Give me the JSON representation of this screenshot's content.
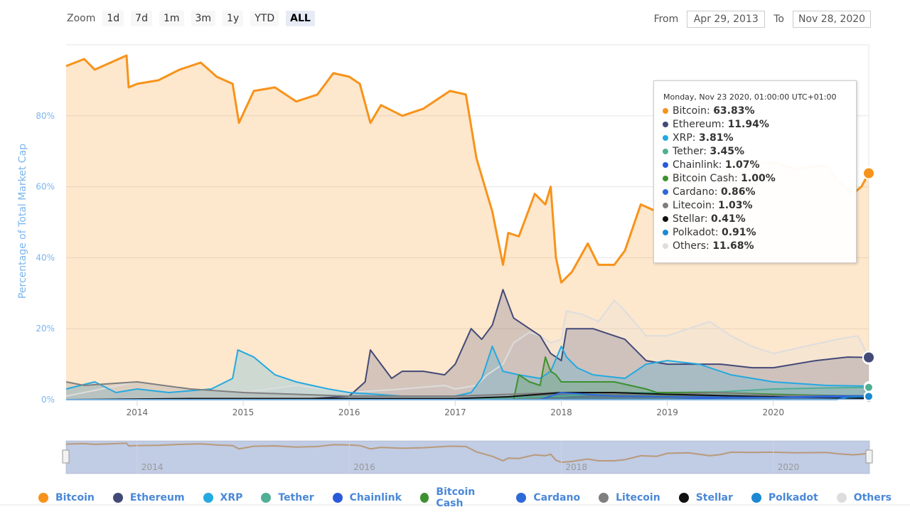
{
  "zoom": {
    "label": "Zoom",
    "buttons": [
      {
        "label": "1d",
        "active": false
      },
      {
        "label": "7d",
        "active": false
      },
      {
        "label": "1m",
        "active": false
      },
      {
        "label": "3m",
        "active": false
      },
      {
        "label": "1y",
        "active": false
      },
      {
        "label": "YTD",
        "active": false
      },
      {
        "label": "ALL",
        "active": true
      }
    ]
  },
  "range": {
    "from_label": "From",
    "from_value": "Apr 29, 2013",
    "to_label": "To",
    "to_value": "Nov 28, 2020"
  },
  "tooltip": {
    "header": "Monday, Nov 23 2020, 01:00:00 UTC+01:00",
    "rows": [
      {
        "name": "Bitcoin",
        "value": "63.83%",
        "color": "#f7931a"
      },
      {
        "name": "Ethereum",
        "value": "11.94%",
        "color": "#434a77"
      },
      {
        "name": "XRP",
        "value": "3.81%",
        "color": "#24a9e0"
      },
      {
        "name": "Tether",
        "value": "3.45%",
        "color": "#50af95"
      },
      {
        "name": "Chainlink",
        "value": "1.07%",
        "color": "#2a5ada"
      },
      {
        "name": "Bitcoin Cash",
        "value": "1.00%",
        "color": "#3d9130"
      },
      {
        "name": "Cardano",
        "value": "0.86%",
        "color": "#2d6ad8"
      },
      {
        "name": "Litecoin",
        "value": "1.03%",
        "color": "#7f7f7f"
      },
      {
        "name": "Stellar",
        "value": "0.41%",
        "color": "#111111"
      },
      {
        "name": "Polkadot",
        "value": "0.91%",
        "color": "#1c88d2"
      },
      {
        "name": "Others",
        "value": "11.68%",
        "color": "#dddddd"
      }
    ]
  },
  "legend": [
    {
      "name": "Bitcoin",
      "color": "#f7931a"
    },
    {
      "name": "Ethereum",
      "color": "#434a77"
    },
    {
      "name": "XRP",
      "color": "#24a9e0"
    },
    {
      "name": "Tether",
      "color": "#50af95"
    },
    {
      "name": "Chainlink",
      "color": "#2a5ada"
    },
    {
      "name": "Bitcoin Cash",
      "color": "#3d9130"
    },
    {
      "name": "Cardano",
      "color": "#2d6ad8"
    },
    {
      "name": "Litecoin",
      "color": "#7f7f7f"
    },
    {
      "name": "Stellar",
      "color": "#111111"
    },
    {
      "name": "Polkadot",
      "color": "#1c88d2"
    },
    {
      "name": "Others",
      "color": "#dddddd"
    }
  ],
  "chart_data": {
    "type": "area",
    "title": "",
    "xlabel": "",
    "ylabel": "Percentage of Total Market Cap",
    "ylim": [
      0,
      100
    ],
    "xlim": [
      2013.33,
      2020.9
    ],
    "y_ticks": [
      "0%",
      "20%",
      "40%",
      "60%",
      "80%"
    ],
    "y_tick_values": [
      0,
      20,
      40,
      60,
      80
    ],
    "x_ticks": [
      "2014",
      "2015",
      "2016",
      "2017",
      "2018",
      "2019",
      "2020"
    ],
    "x_tick_values": [
      2014,
      2015,
      2016,
      2017,
      2018,
      2019,
      2020
    ],
    "navigator_ticks": [
      "2014",
      "2016",
      "2018",
      "2020"
    ],
    "navigator_tick_values": [
      2014,
      2016,
      2018,
      2020
    ],
    "series": [
      {
        "name": "Bitcoin",
        "color": "#f7931a",
        "x": [
          2013.33,
          2013.5,
          2013.6,
          2013.75,
          2013.9,
          2013.92,
          2014.0,
          2014.2,
          2014.4,
          2014.6,
          2014.75,
          2014.9,
          2014.96,
          2015.1,
          2015.3,
          2015.5,
          2015.7,
          2015.85,
          2016.0,
          2016.1,
          2016.2,
          2016.3,
          2016.5,
          2016.7,
          2016.9,
          2016.95,
          2017.1,
          2017.2,
          2017.25,
          2017.35,
          2017.45,
          2017.5,
          2017.6,
          2017.75,
          2017.85,
          2017.9,
          2017.95,
          2018.0,
          2018.1,
          2018.25,
          2018.35,
          2018.5,
          2018.6,
          2018.75,
          2018.9,
          2019.0,
          2019.2,
          2019.4,
          2019.5,
          2019.6,
          2019.8,
          2020.0,
          2020.2,
          2020.5,
          2020.6,
          2020.75,
          2020.83,
          2020.9
        ],
        "values": [
          94,
          96,
          93,
          95,
          97,
          88,
          89,
          90,
          93,
          95,
          91,
          89,
          78,
          87,
          88,
          84,
          86,
          92,
          91,
          89,
          78,
          83,
          80,
          82,
          86,
          87,
          86,
          68,
          63,
          53,
          38,
          47,
          46,
          58,
          55,
          60,
          40,
          33,
          36,
          44,
          38,
          38,
          42,
          55,
          53,
          63,
          65,
          55,
          59,
          67,
          66,
          67,
          65,
          66,
          62,
          58,
          60,
          63.8
        ]
      },
      {
        "name": "Others",
        "color": "#dddddd",
        "x": [
          2013.33,
          2014.0,
          2014.5,
          2015.0,
          2015.5,
          2016.0,
          2016.5,
          2016.9,
          2017.0,
          2017.2,
          2017.3,
          2017.45,
          2017.55,
          2017.7,
          2017.8,
          2017.9,
          2018.0,
          2018.05,
          2018.2,
          2018.35,
          2018.5,
          2018.6,
          2018.8,
          2019.0,
          2019.2,
          2019.4,
          2019.6,
          2019.8,
          2020.0,
          2020.3,
          2020.6,
          2020.8,
          2020.9
        ],
        "values": [
          1,
          5,
          3,
          2,
          4,
          2,
          3,
          4,
          3,
          4,
          7,
          10,
          16,
          19,
          18,
          16,
          17,
          25,
          24,
          22,
          28,
          25,
          18,
          18,
          20,
          22,
          18,
          15,
          13,
          15,
          17,
          18,
          11.7
        ]
      },
      {
        "name": "Ethereum",
        "color": "#434a77",
        "x": [
          2013.33,
          2015.5,
          2016.0,
          2016.15,
          2016.2,
          2016.3,
          2016.4,
          2016.5,
          2016.7,
          2016.9,
          2017.0,
          2017.15,
          2017.25,
          2017.35,
          2017.45,
          2017.55,
          2017.7,
          2017.8,
          2017.9,
          2018.0,
          2018.05,
          2018.3,
          2018.6,
          2018.8,
          2019.0,
          2019.5,
          2019.8,
          2020.0,
          2020.4,
          2020.7,
          2020.9
        ],
        "values": [
          0,
          0,
          1,
          5,
          14,
          10,
          6,
          8,
          8,
          7,
          10,
          20,
          17,
          21,
          31,
          23,
          20,
          18,
          13,
          11,
          20,
          20,
          17,
          11,
          10,
          10,
          9,
          9,
          11,
          12,
          11.9
        ]
      },
      {
        "name": "XRP",
        "color": "#24a9e0",
        "x": [
          2013.33,
          2013.6,
          2013.8,
          2014.0,
          2014.3,
          2014.7,
          2014.9,
          2014.95,
          2015.1,
          2015.3,
          2015.5,
          2015.8,
          2016.0,
          2016.5,
          2016.9,
          2017.0,
          2017.15,
          2017.25,
          2017.35,
          2017.45,
          2017.6,
          2017.8,
          2017.9,
          2018.0,
          2018.05,
          2018.15,
          2018.3,
          2018.6,
          2018.8,
          2019.0,
          2019.3,
          2019.6,
          2020.0,
          2020.5,
          2020.9
        ],
        "values": [
          3,
          5,
          2,
          3,
          2,
          3,
          6,
          14,
          12,
          7,
          5,
          3,
          2,
          1,
          1,
          1,
          2,
          6,
          15,
          8,
          7,
          6,
          8,
          15,
          12,
          9,
          7,
          6,
          10,
          11,
          10,
          7,
          5,
          4,
          3.8
        ]
      },
      {
        "name": "Tether",
        "color": "#50af95",
        "x": [
          2013.33,
          2015.0,
          2017.0,
          2017.5,
          2018.0,
          2018.5,
          2019.0,
          2019.5,
          2020.0,
          2020.5,
          2020.9
        ],
        "values": [
          0,
          0,
          0,
          0.5,
          1,
          2,
          2,
          2.2,
          3,
          3.3,
          3.45
        ]
      },
      {
        "name": "Bitcoin Cash",
        "color": "#3d9130",
        "x": [
          2013.33,
          2017.55,
          2017.6,
          2017.7,
          2017.8,
          2017.85,
          2017.9,
          2017.95,
          2018.0,
          2018.2,
          2018.5,
          2018.8,
          2018.9,
          2019.0,
          2019.5,
          2020.0,
          2020.5,
          2020.9
        ],
        "values": [
          0,
          0,
          7,
          5,
          4,
          12,
          8,
          7,
          5,
          5,
          5,
          3,
          2,
          2,
          2,
          1.5,
          1.2,
          1.0
        ]
      },
      {
        "name": "Litecoin",
        "color": "#7f7f7f",
        "x": [
          2013.33,
          2013.5,
          2014.0,
          2014.5,
          2015.0,
          2016.0,
          2017.0,
          2017.5,
          2018.0,
          2019.0,
          2019.5,
          2020.0,
          2020.9
        ],
        "values": [
          5,
          4,
          5,
          3,
          2,
          1,
          1,
          1.5,
          2,
          1.5,
          2,
          1.2,
          1.03
        ]
      },
      {
        "name": "Stellar",
        "color": "#111111",
        "x": [
          2013.33,
          2014.5,
          2017.0,
          2017.5,
          2018.0,
          2018.5,
          2019.0,
          2020.0,
          2020.9
        ],
        "values": [
          0,
          0.3,
          0.3,
          0.8,
          2,
          2,
          1.5,
          0.8,
          0.41
        ]
      },
      {
        "name": "Chainlink",
        "color": "#2a5ada",
        "x": [
          2013.33,
          2019.0,
          2019.5,
          2020.0,
          2020.5,
          2020.9
        ],
        "values": [
          0,
          0,
          0.5,
          0.6,
          1.0,
          1.07
        ]
      },
      {
        "name": "Cardano",
        "color": "#2d6ad8",
        "x": [
          2013.33,
          2017.8,
          2018.0,
          2018.5,
          2019.0,
          2020.0,
          2020.9
        ],
        "values": [
          0,
          0,
          2,
          1,
          0.8,
          0.6,
          0.86
        ]
      },
      {
        "name": "Polkadot",
        "color": "#1c88d2",
        "x": [
          2013.33,
          2020.6,
          2020.7,
          2020.9
        ],
        "values": [
          0,
          0,
          0.7,
          0.91
        ]
      }
    ]
  }
}
